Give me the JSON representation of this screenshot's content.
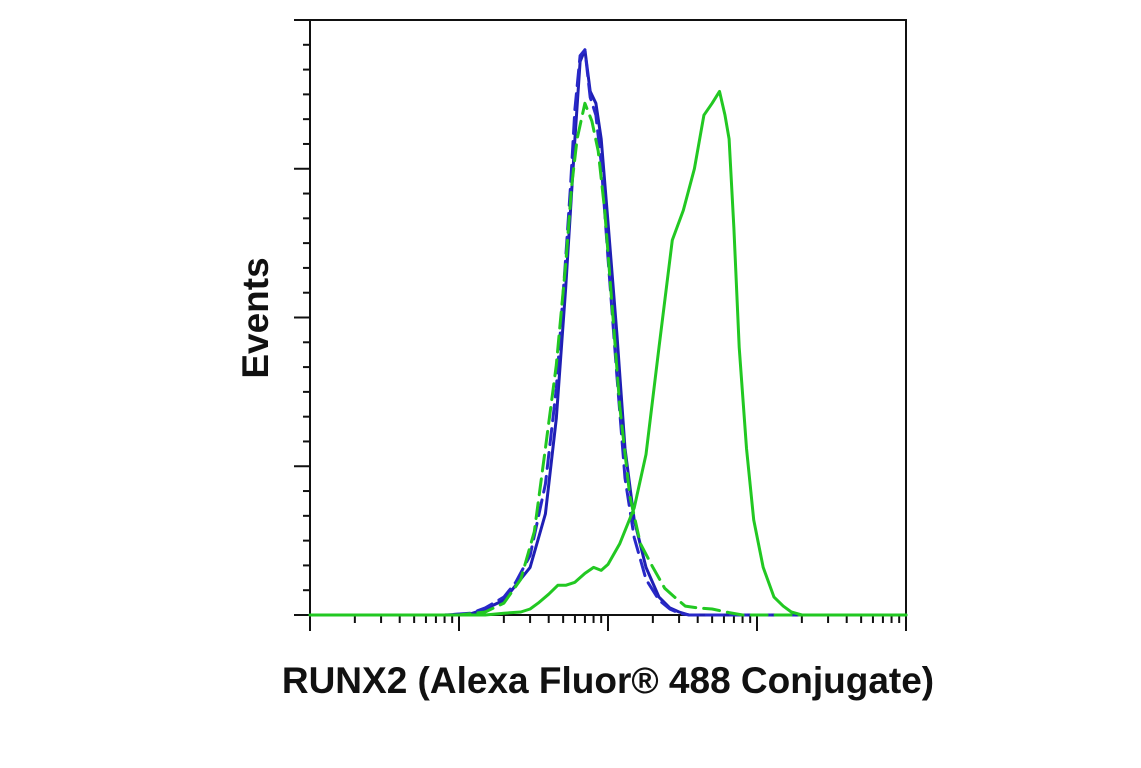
{
  "chart_data": {
    "type": "line",
    "title": "",
    "xlabel": "RUNX2 (Alexa Fluor® 488 Conjugate)",
    "ylabel": "Events",
    "x_scale": "log",
    "xlim": [
      10,
      100000
    ],
    "ylim": [
      0,
      100
    ],
    "grid": false,
    "legend": "none",
    "series": [
      {
        "color": "#1f1fb4",
        "style": "solid",
        "x": [
          10,
          80,
          120,
          150,
          200,
          240,
          300,
          380,
          450,
          520,
          560,
          600,
          650,
          700,
          760,
          830,
          900,
          1000,
          1150,
          1300,
          1500,
          1800,
          2200,
          2600,
          3000,
          3500,
          5000,
          10000,
          30000,
          100000
        ],
        "y": [
          0,
          0,
          0.2,
          1,
          2.5,
          5,
          8,
          17,
          33,
          55,
          68,
          80,
          93,
          95,
          88,
          86,
          80,
          66,
          47,
          28,
          16,
          8,
          3,
          1.2,
          0.5,
          0,
          0,
          0,
          0,
          0
        ]
      },
      {
        "color": "#2828c8",
        "style": "dashed",
        "x": [
          10,
          80,
          120,
          150,
          200,
          240,
          300,
          380,
          450,
          520,
          560,
          600,
          650,
          700,
          760,
          830,
          900,
          1000,
          1150,
          1300,
          1500,
          1800,
          2200,
          2600,
          3000,
          3500,
          5000,
          10000,
          30000,
          100000
        ],
        "y": [
          0,
          0,
          0.3,
          1.2,
          3,
          5.5,
          10,
          22,
          38,
          60,
          72,
          85,
          94,
          95,
          87,
          84,
          76,
          60,
          40,
          23,
          13,
          6,
          2.5,
          1,
          0.3,
          0,
          0,
          0,
          0,
          0
        ]
      },
      {
        "color": "#22c822",
        "style": "dashed",
        "x": [
          10,
          100,
          150,
          200,
          260,
          320,
          380,
          450,
          520,
          570,
          620,
          700,
          780,
          860,
          950,
          1080,
          1200,
          1400,
          1650,
          2000,
          2400,
          2800,
          3300,
          4000,
          5000,
          6500,
          8000,
          10000,
          30000,
          100000
        ],
        "y": [
          0,
          0,
          0.5,
          2,
          6,
          14,
          28,
          42,
          59,
          72,
          80,
          86,
          83,
          78,
          68,
          50,
          35,
          20,
          12,
          8,
          4.5,
          3,
          1.5,
          1.2,
          1,
          0.4,
          0,
          0,
          0,
          0
        ]
      },
      {
        "color": "#22c822",
        "style": "solid",
        "x": [
          10,
          150,
          200,
          260,
          300,
          340,
          400,
          460,
          520,
          600,
          700,
          800,
          900,
          1000,
          1200,
          1500,
          1800,
          2200,
          2700,
          3200,
          3800,
          4400,
          5000,
          5600,
          6100,
          6500,
          7000,
          7600,
          8500,
          9500,
          11000,
          13000,
          15000,
          17000,
          20000,
          100000
        ],
        "y": [
          0,
          0,
          0.3,
          0.5,
          1,
          2,
          3.5,
          5,
          5,
          5.5,
          7,
          8,
          7.5,
          8.5,
          12,
          18,
          27,
          45,
          63,
          68,
          75,
          84,
          86,
          88,
          84,
          80,
          65,
          45,
          28,
          16,
          8,
          3,
          1.5,
          0.5,
          0,
          0
        ]
      }
    ]
  }
}
